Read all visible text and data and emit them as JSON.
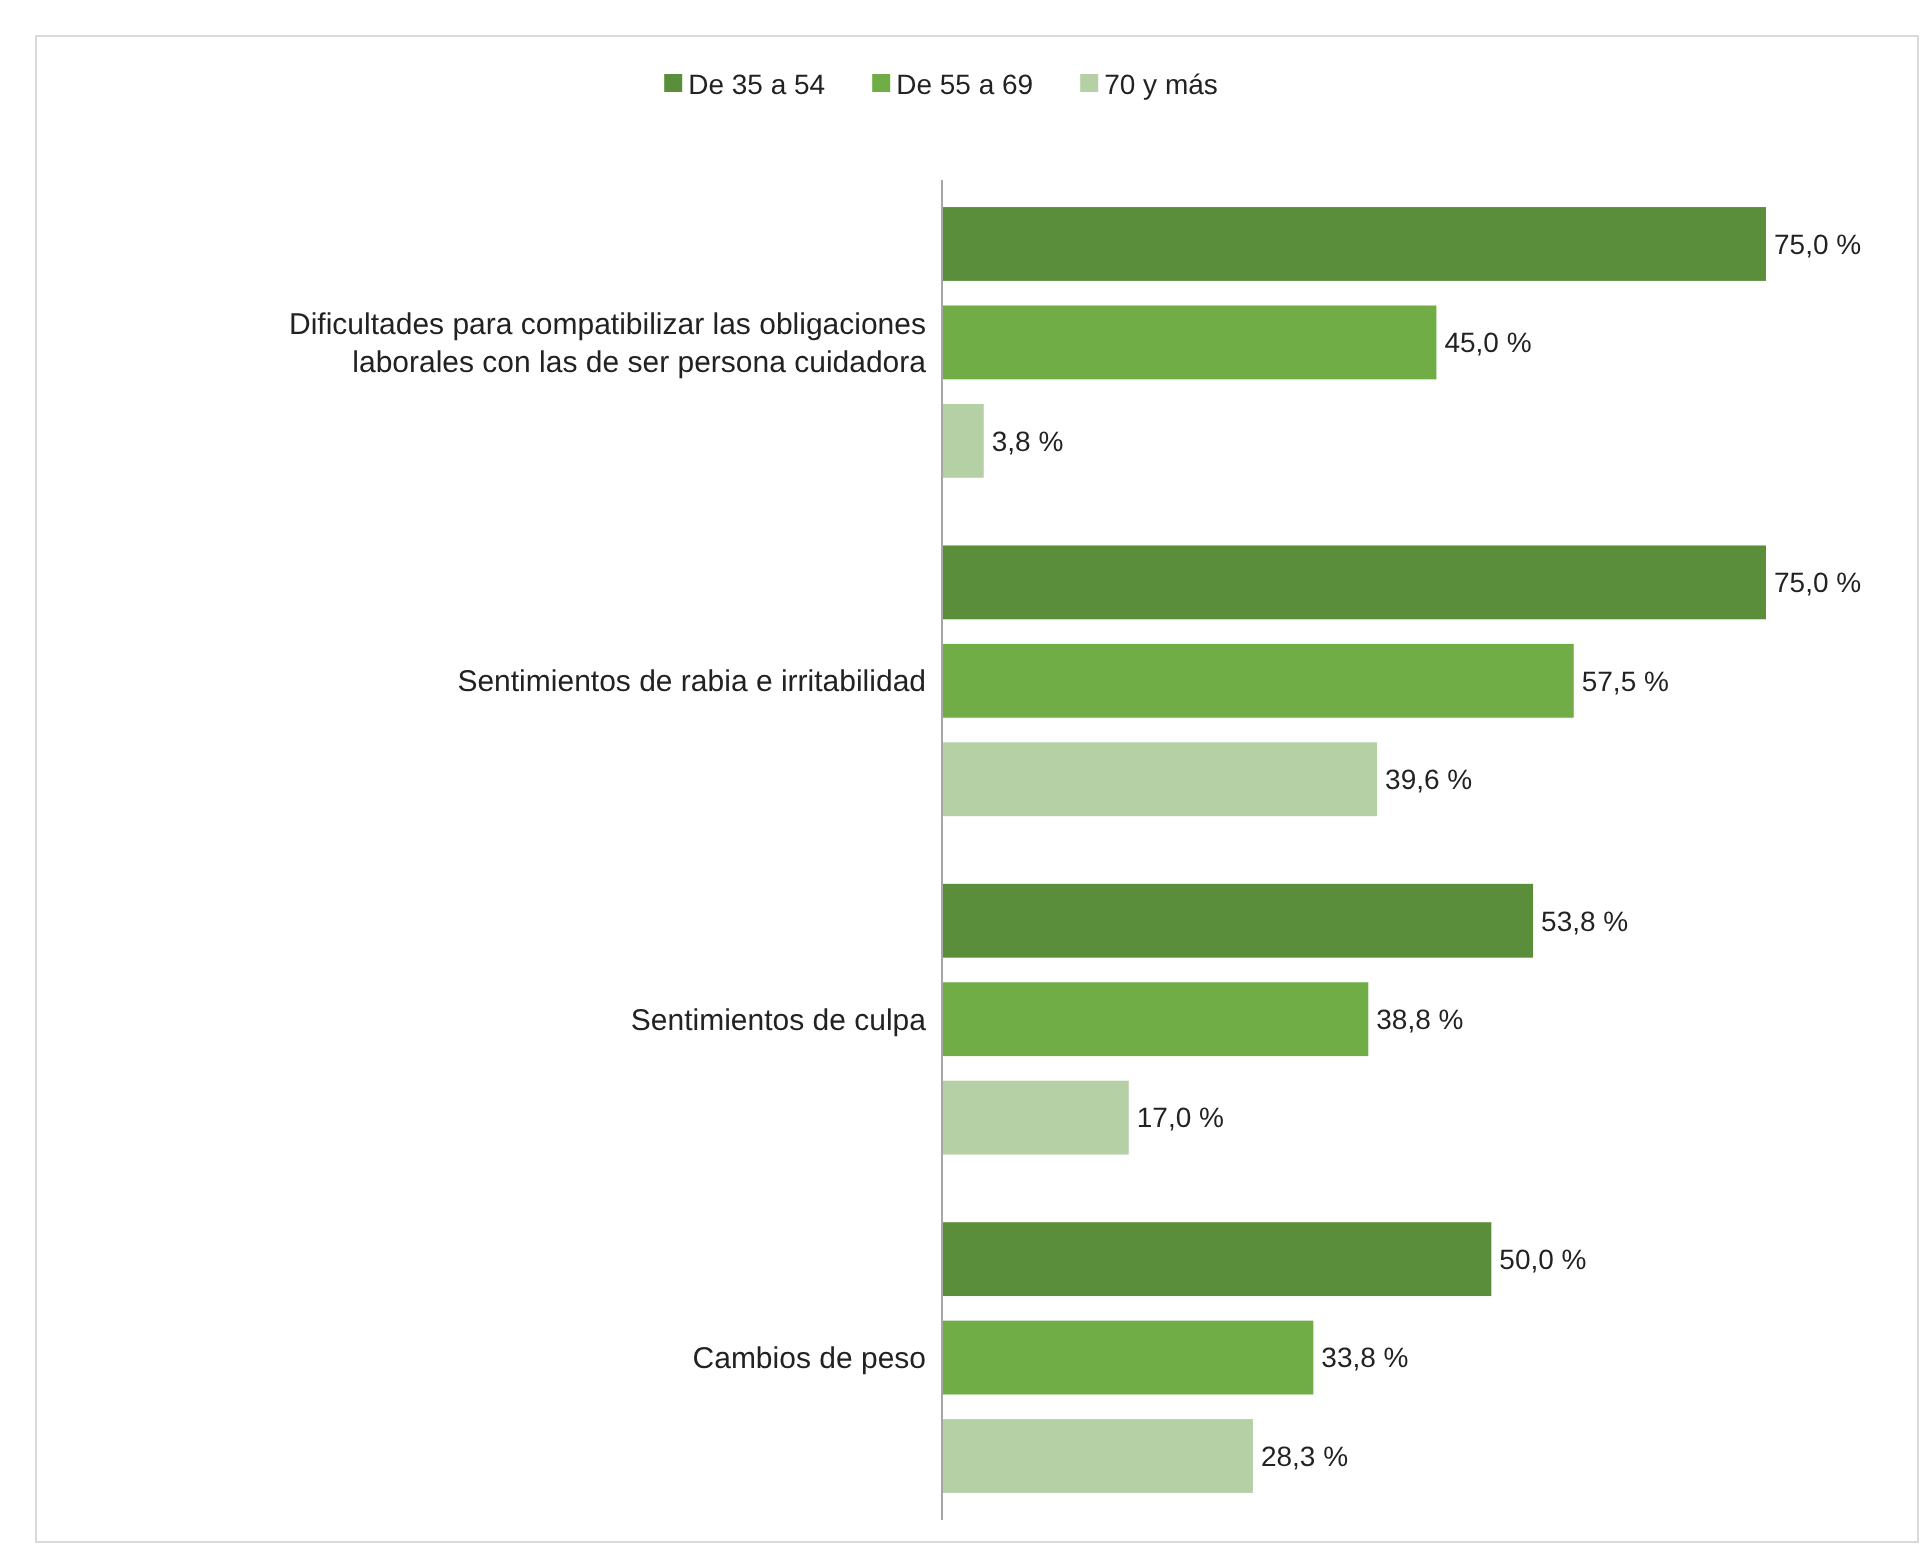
{
  "chart_data": {
    "type": "bar",
    "orientation": "horizontal",
    "categories": [
      "Dificultades para compatibilizar las obligaciones\nlaborales con las de ser persona cuidadora",
      "Sentimientos de rabia e irritabilidad",
      "Sentimientos de culpa",
      "Cambios de peso"
    ],
    "series": [
      {
        "name": "De 35 a 54",
        "color": "#5b8e3a",
        "values": [
          75.0,
          75.0,
          53.8,
          50.0
        ],
        "value_labels": [
          "75,0 %",
          "75,0 %",
          "53,8 %",
          "50,0 %"
        ]
      },
      {
        "name": "De 55 a 69",
        "color": "#70ad47",
        "values": [
          45.0,
          57.5,
          38.8,
          33.8
        ],
        "value_labels": [
          "45,0 %",
          "57,5 %",
          "38,8 %",
          "33,8 %"
        ]
      },
      {
        "name": "70 y más",
        "color": "#b5d0a4",
        "values": [
          3.8,
          39.6,
          17.0,
          28.3
        ],
        "value_labels": [
          "3,8 %",
          "39,6 %",
          "17,0 %",
          "28,3 %"
        ]
      }
    ],
    "legend": "top"
  }
}
